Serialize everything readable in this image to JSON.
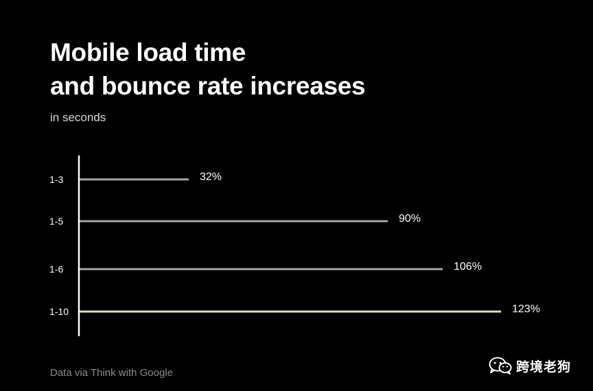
{
  "header": {
    "title_line1": "Mobile load time",
    "title_line2": "and bounce rate increases",
    "subtitle": "in seconds"
  },
  "footer": {
    "source": "Data via Think with Google",
    "watermark": "跨境老狗"
  },
  "chart_data": {
    "type": "bar",
    "orientation": "horizontal",
    "categories": [
      "1-3",
      "1-5",
      "1-6",
      "1-10"
    ],
    "values": [
      32,
      90,
      106,
      123
    ],
    "value_labels": [
      "32%",
      "90%",
      "106%",
      "123%"
    ],
    "unit": "%",
    "xlim": [
      0,
      123
    ],
    "grid": false,
    "bar_color": "#a6a6a6",
    "highlight_color": "#d4e9a2",
    "highlight_index": 3
  },
  "colors": {
    "background": "#000000",
    "text": "#ffffff",
    "muted": "#8c8c8c"
  }
}
